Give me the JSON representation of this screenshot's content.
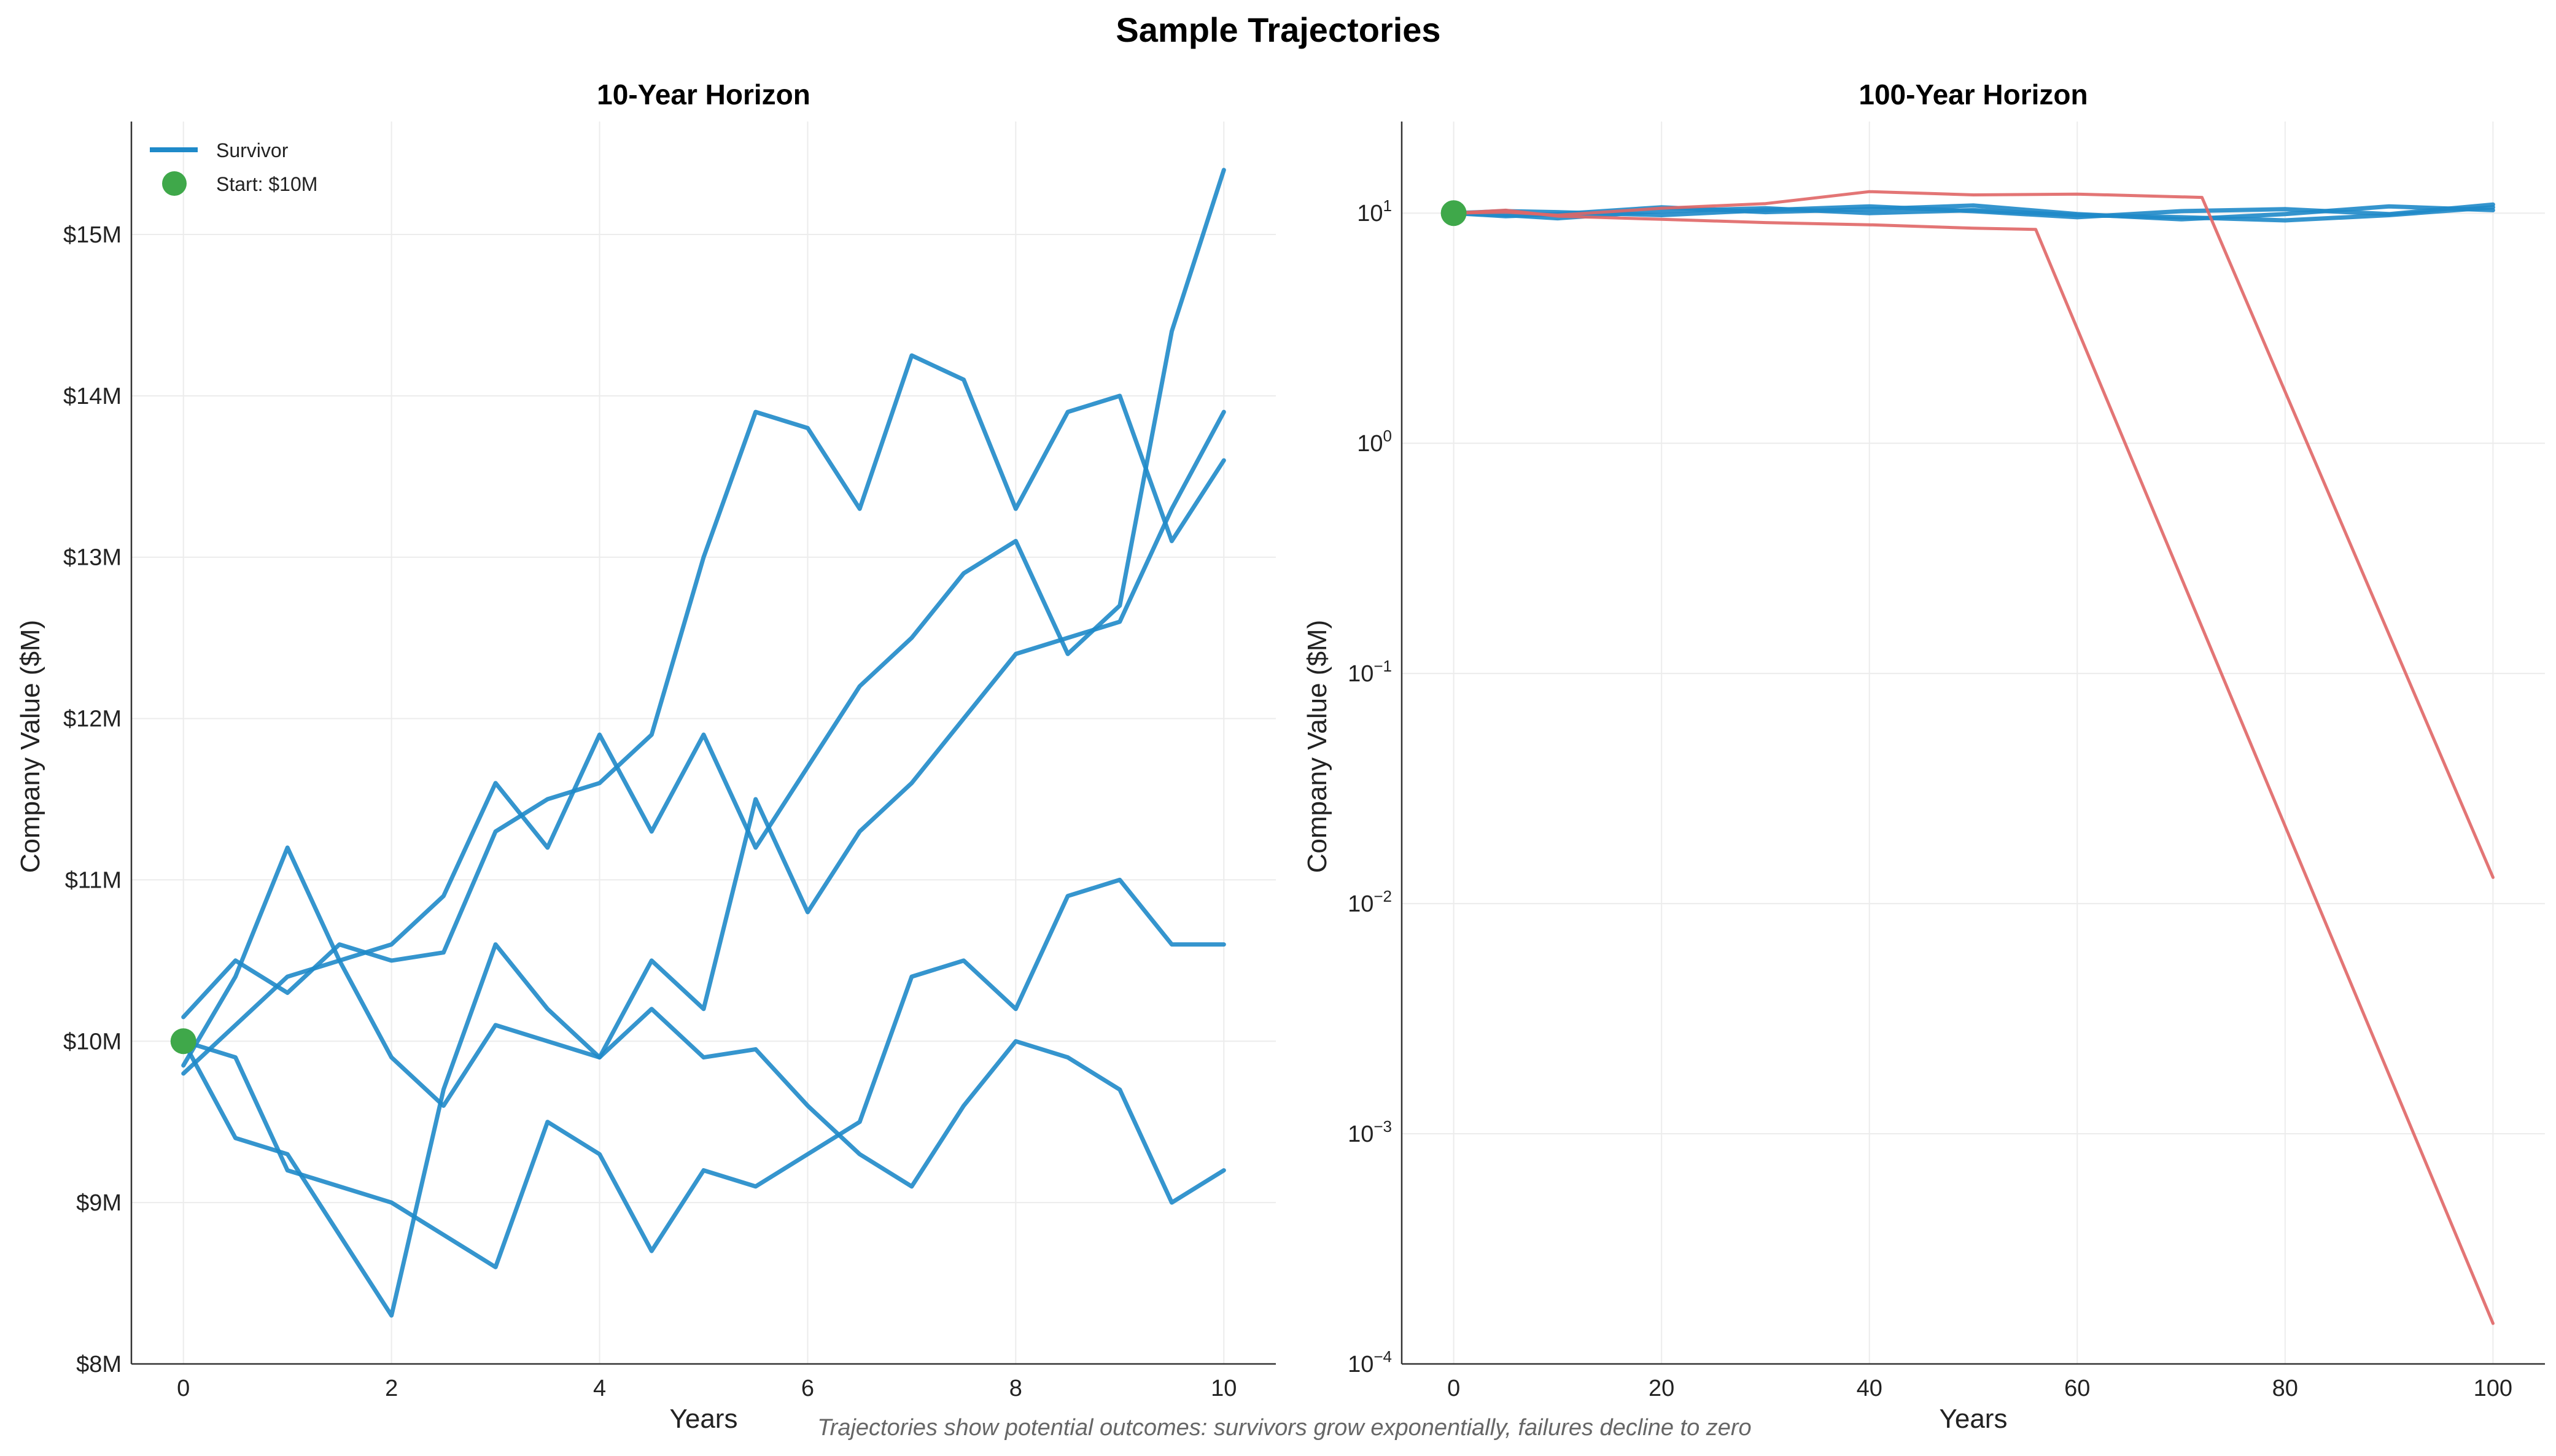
{
  "title": "Sample Trajectories",
  "footnote": "Trajectories show potential outcomes: survivors grow exponentially, failures decline to zero",
  "colors": {
    "survivor": "#1f8ac9",
    "failure": "#e06666",
    "start": "#3fa84a"
  },
  "legend": {
    "survivor": "Survivor",
    "start": "Start: $10M"
  },
  "chart_data": [
    {
      "type": "line",
      "title": "10-Year Horizon",
      "xlabel": "Years",
      "ylabel": "Company Value ($M)",
      "xlim": [
        -0.5,
        10.5
      ],
      "ylim": [
        8,
        15.7
      ],
      "xticks": [
        0,
        2,
        4,
        6,
        8,
        10
      ],
      "xtick_labels": [
        "0",
        "2",
        "4",
        "6",
        "8",
        "10"
      ],
      "yticks": [
        8,
        9,
        10,
        11,
        12,
        13,
        14,
        15
      ],
      "ytick_labels": [
        "$8M",
        "$9M",
        "$10M",
        "$11M",
        "$12M",
        "$13M",
        "$14M",
        "$15M"
      ],
      "grid": true,
      "legend_position": "top-left",
      "start_point": {
        "x": 0,
        "y": 10
      },
      "series": [
        {
          "x": [
            0,
            0.5,
            1,
            1.5,
            2,
            2.5,
            3,
            3.5,
            4,
            4.5,
            5,
            5.5,
            6,
            6.5,
            7,
            7.5,
            8,
            8.5,
            9,
            9.5,
            10
          ],
          "values": [
            10.15,
            10.5,
            10.3,
            10.6,
            10.5,
            10.55,
            11.3,
            11.5,
            11.6,
            11.9,
            13.0,
            13.9,
            13.8,
            13.3,
            14.25,
            14.1,
            13.3,
            13.9,
            14.0,
            13.1,
            13.6
          ]
        },
        {
          "x": [
            0,
            0.5,
            1,
            1.5,
            2,
            2.5,
            3,
            3.5,
            4,
            4.5,
            5,
            5.5,
            6,
            6.5,
            7,
            7.5,
            8,
            8.5,
            9,
            9.5,
            10
          ],
          "values": [
            9.85,
            10.4,
            11.2,
            10.5,
            10.6,
            10.9,
            11.6,
            11.2,
            11.9,
            11.3,
            11.9,
            11.2,
            11.7,
            12.2,
            12.5,
            12.9,
            13.1,
            12.4,
            12.7,
            14.4,
            15.4
          ]
        },
        {
          "x": [
            0,
            0.5,
            1,
            1.5,
            2,
            2.5,
            3,
            3.5,
            4,
            4.5,
            5,
            5.5,
            6,
            6.5,
            7,
            7.5,
            8,
            8.5,
            9,
            9.5,
            10
          ],
          "values": [
            10.0,
            9.4,
            9.3,
            8.8,
            8.3,
            9.7,
            10.6,
            10.2,
            9.9,
            10.5,
            10.2,
            11.5,
            10.8,
            11.3,
            11.6,
            12.0,
            12.4,
            12.5,
            12.6,
            13.3,
            13.9
          ]
        },
        {
          "x": [
            0,
            0.5,
            1,
            1.5,
            2,
            2.5,
            3,
            3.5,
            4,
            4.5,
            5,
            5.5,
            6,
            6.5,
            7,
            7.5,
            8,
            8.5,
            9,
            9.5,
            10
          ],
          "values": [
            10.0,
            9.9,
            9.2,
            9.1,
            9.0,
            8.8,
            8.6,
            9.5,
            9.3,
            8.7,
            9.2,
            9.1,
            9.3,
            9.5,
            10.4,
            10.5,
            10.2,
            10.9,
            11.0,
            10.6,
            10.6
          ]
        },
        {
          "x": [
            0,
            0.5,
            1,
            1.5,
            2,
            2.5,
            3,
            3.5,
            4,
            4.5,
            5,
            5.5,
            6,
            6.5,
            7,
            7.5,
            8,
            8.5,
            9,
            9.5,
            10
          ],
          "values": [
            9.8,
            10.1,
            10.4,
            10.5,
            9.9,
            9.6,
            10.1,
            10.0,
            9.9,
            10.2,
            9.9,
            9.95,
            9.6,
            9.3,
            9.1,
            9.6,
            10.0,
            9.9,
            9.7,
            9.0,
            9.2
          ]
        }
      ]
    },
    {
      "type": "line",
      "title": "100-Year Horizon",
      "xlabel": "Years",
      "ylabel": "Company Value ($M)",
      "yscale": "log",
      "xlim": [
        -5,
        105
      ],
      "ylim": [
        0.0001,
        25
      ],
      "xticks": [
        0,
        20,
        40,
        60,
        80,
        100
      ],
      "xtick_labels": [
        "0",
        "20",
        "40",
        "60",
        "80",
        "100"
      ],
      "yticks": [
        0.0001,
        0.001,
        0.01,
        0.1,
        1,
        10
      ],
      "ytick_labels": [
        {
          "base": "10",
          "exp": "−4"
        },
        {
          "base": "10",
          "exp": "−3"
        },
        {
          "base": "10",
          "exp": "−2"
        },
        {
          "base": "10",
          "exp": "−1"
        },
        {
          "base": "10",
          "exp": "0"
        },
        {
          "base": "10",
          "exp": "1"
        }
      ],
      "grid": true,
      "start_point": {
        "x": 0,
        "y": 10
      },
      "series": [
        {
          "status": "survivor",
          "x": [
            0,
            5,
            10,
            20,
            30,
            40,
            50,
            60,
            70,
            80,
            90,
            100
          ],
          "values": [
            10,
            9.8,
            9.5,
            10.2,
            10.5,
            10.0,
            10.3,
            9.8,
            9.6,
            9.3,
            9.8,
            10.6
          ]
        },
        {
          "status": "survivor",
          "x": [
            0,
            5,
            10,
            20,
            30,
            40,
            50,
            60,
            70,
            80,
            90,
            100
          ],
          "values": [
            10,
            9.7,
            9.9,
            10.6,
            10.1,
            10.4,
            10.8,
            9.9,
            9.4,
            9.9,
            10.7,
            10.3
          ]
        },
        {
          "status": "survivor",
          "x": [
            0,
            5,
            10,
            20,
            30,
            40,
            50,
            60,
            70,
            80,
            90,
            100
          ],
          "values": [
            10,
            10.2,
            10.1,
            9.8,
            10.3,
            10.7,
            10.2,
            9.6,
            10.2,
            10.4,
            9.9,
            10.9
          ]
        },
        {
          "status": "failure",
          "x": [
            0,
            5,
            10,
            20,
            30,
            40,
            50,
            56,
            100
          ],
          "values": [
            10,
            10.3,
            9.7,
            9.4,
            9.1,
            8.9,
            8.6,
            8.5,
            0.00015
          ]
        },
        {
          "status": "failure",
          "x": [
            0,
            5,
            10,
            20,
            30,
            40,
            50,
            60,
            72,
            100
          ],
          "values": [
            10,
            10.1,
            9.8,
            10.5,
            11.0,
            12.4,
            12.0,
            12.1,
            11.7,
            0.013
          ]
        }
      ]
    }
  ]
}
